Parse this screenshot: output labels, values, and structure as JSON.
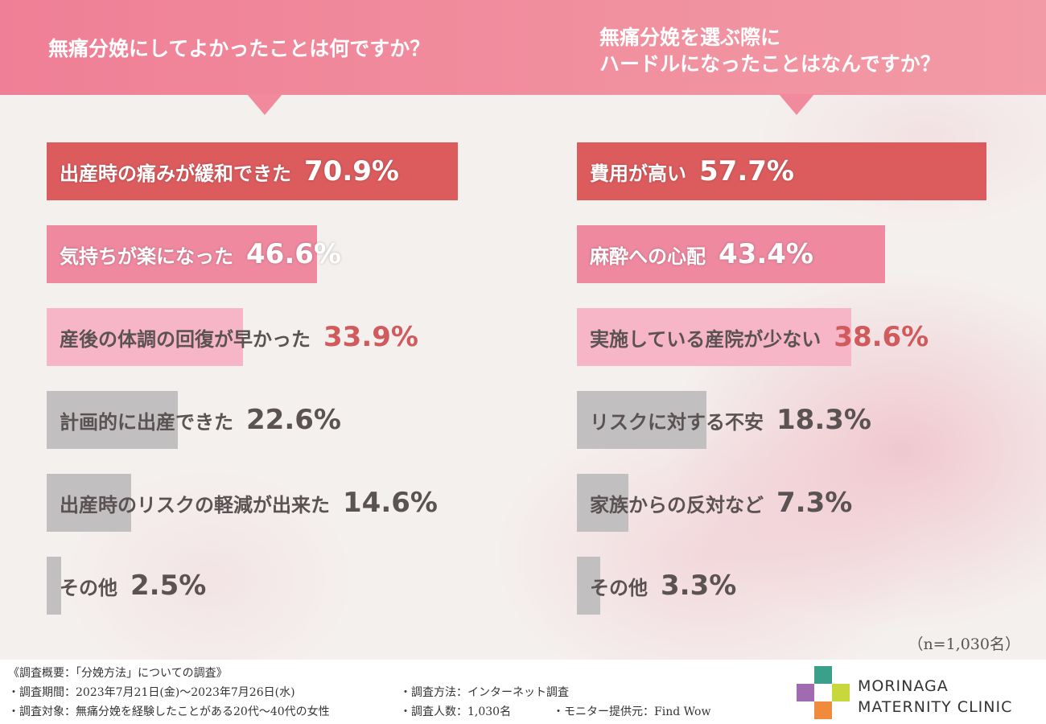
{
  "colors": {
    "rank1": "#dc5c5e",
    "rank2": "#ee89a0",
    "rank3": "#f7b6c8",
    "gray": "#c1bfbf"
  },
  "header": {
    "left_question": "無痛分娩にしてよかったことは何ですか？",
    "right_question": "無痛分娩を選ぶ際に\nハードルになったことはなんですか？"
  },
  "chart_data": [
    {
      "type": "bar",
      "title": "無痛分娩にしてよかったことは何ですか？",
      "categories": [
        "出産時の痛みが緩和できた",
        "気持ちが楽になった",
        "産後の体調の回復が早かった",
        "計画的に出産できた",
        "出産時のリスクの軽減が出来た",
        "その他"
      ],
      "values": [
        70.9,
        46.6,
        33.9,
        22.6,
        14.6,
        2.5
      ],
      "value_labels": [
        "70.9%",
        "46.6%",
        "33.9%",
        "22.6%",
        "14.6%",
        "2.5%"
      ],
      "orientation": "horizontal",
      "unit": "%"
    },
    {
      "type": "bar",
      "title": "無痛分娩を選ぶ際にハードルになったことはなんですか？",
      "categories": [
        "費用が高い",
        "麻酔への心配",
        "実施している産院が少ない",
        "リスクに対する不安",
        "家族からの反対など",
        "その他"
      ],
      "values": [
        57.7,
        43.4,
        38.6,
        18.3,
        7.3,
        3.3
      ],
      "value_labels": [
        "57.7%",
        "43.4%",
        "38.6%",
        "18.3%",
        "7.3%",
        "3.3%"
      ],
      "orientation": "horizontal",
      "unit": "%"
    }
  ],
  "sample_note": "（n=1,030名）",
  "footer": {
    "summary_title": "《調査概要：「分娩方法」についての調査》",
    "period": "・調査期間：2023年7月21日(金)〜2023年7月26日(水)",
    "method": "・調査方法：インターネット調査",
    "target": "・調査対象：無痛分娩を経験したことがある20代〜40代の女性",
    "count": "・調査人数：1,030名",
    "provider": "・モニター提供元：Find Wow"
  },
  "logo": {
    "line1": "MORINAGA",
    "line2": "MATERNITY CLINIC",
    "colors": [
      "#3aa089",
      "#a06bb0",
      "#c8d83c",
      "#f08a3c",
      "#ffffff"
    ]
  }
}
